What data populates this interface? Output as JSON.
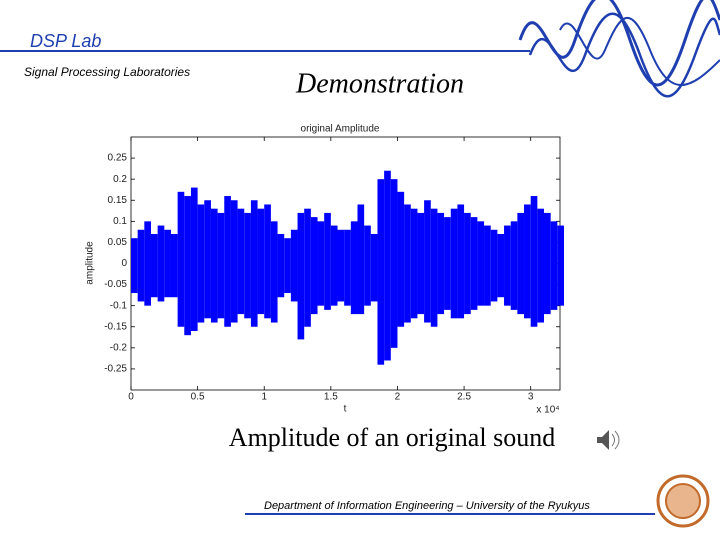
{
  "header": {
    "lab": "DSP Lab",
    "subtitle": "Signal Processing Laboratories",
    "heading": "Demonstration"
  },
  "chart_data": {
    "type": "range",
    "title": "original Amplitude",
    "xlabel": "t",
    "ylabel": "amplitude",
    "x_scale_label": "x 10⁴",
    "color": "#0000ff",
    "x": [
      0,
      500,
      1000,
      1500,
      2000,
      2500,
      3000,
      3500,
      4000,
      4500,
      5000,
      5500,
      6000,
      6500,
      7000,
      7500,
      8000,
      8500,
      9000,
      9500,
      10000,
      10500,
      11000,
      11500,
      12000,
      12500,
      13000,
      13500,
      14000,
      14500,
      15000,
      15500,
      16000,
      16500,
      17000,
      17500,
      18000,
      18500,
      19000,
      19500,
      20000,
      20500,
      21000,
      21500,
      22000,
      22500,
      23000,
      23500,
      24000,
      24500,
      25000,
      25500,
      26000,
      26500,
      27000,
      27500,
      28000,
      28500,
      29000,
      29500,
      30000,
      30500,
      31000,
      31500,
      32000
    ],
    "upper": [
      0.06,
      0.08,
      0.1,
      0.07,
      0.09,
      0.08,
      0.07,
      0.17,
      0.16,
      0.18,
      0.14,
      0.15,
      0.13,
      0.12,
      0.16,
      0.15,
      0.13,
      0.12,
      0.15,
      0.13,
      0.14,
      0.1,
      0.07,
      0.06,
      0.08,
      0.12,
      0.13,
      0.11,
      0.1,
      0.12,
      0.09,
      0.08,
      0.08,
      0.1,
      0.14,
      0.09,
      0.07,
      0.2,
      0.22,
      0.2,
      0.17,
      0.14,
      0.13,
      0.12,
      0.15,
      0.13,
      0.12,
      0.11,
      0.13,
      0.14,
      0.12,
      0.11,
      0.1,
      0.09,
      0.08,
      0.07,
      0.09,
      0.1,
      0.12,
      0.14,
      0.16,
      0.13,
      0.12,
      0.1,
      0.09
    ],
    "lower": [
      -0.07,
      -0.09,
      -0.1,
      -0.08,
      -0.09,
      -0.08,
      -0.08,
      -0.15,
      -0.17,
      -0.16,
      -0.14,
      -0.13,
      -0.14,
      -0.13,
      -0.15,
      -0.14,
      -0.12,
      -0.13,
      -0.15,
      -0.12,
      -0.13,
      -0.14,
      -0.08,
      -0.07,
      -0.09,
      -0.18,
      -0.15,
      -0.12,
      -0.1,
      -0.11,
      -0.1,
      -0.09,
      -0.1,
      -0.12,
      -0.12,
      -0.1,
      -0.09,
      -0.24,
      -0.23,
      -0.2,
      -0.15,
      -0.14,
      -0.13,
      -0.12,
      -0.14,
      -0.15,
      -0.12,
      -0.11,
      -0.13,
      -0.13,
      -0.12,
      -0.11,
      -0.1,
      -0.1,
      -0.09,
      -0.08,
      -0.1,
      -0.11,
      -0.12,
      -0.13,
      -0.15,
      -0.14,
      -0.12,
      -0.11,
      -0.1
    ],
    "xlim": [
      0,
      32200
    ],
    "ylim": [
      -0.3,
      0.3
    ],
    "xticks": [
      {
        "value": 0,
        "label": "0"
      },
      {
        "value": 5000,
        "label": "0.5"
      },
      {
        "value": 10000,
        "label": "1"
      },
      {
        "value": 15000,
        "label": "1.5"
      },
      {
        "value": 20000,
        "label": "2"
      },
      {
        "value": 25000,
        "label": "2.5"
      },
      {
        "value": 30000,
        "label": "3"
      }
    ],
    "yticks": [
      0.25,
      0.2,
      0.15,
      0.1,
      0.05,
      0,
      -0.05,
      -0.1,
      -0.15,
      -0.2,
      -0.25
    ]
  },
  "caption": "Amplitude of an original sound",
  "footer": "Department of Information Engineering – University of the Ryukyus"
}
